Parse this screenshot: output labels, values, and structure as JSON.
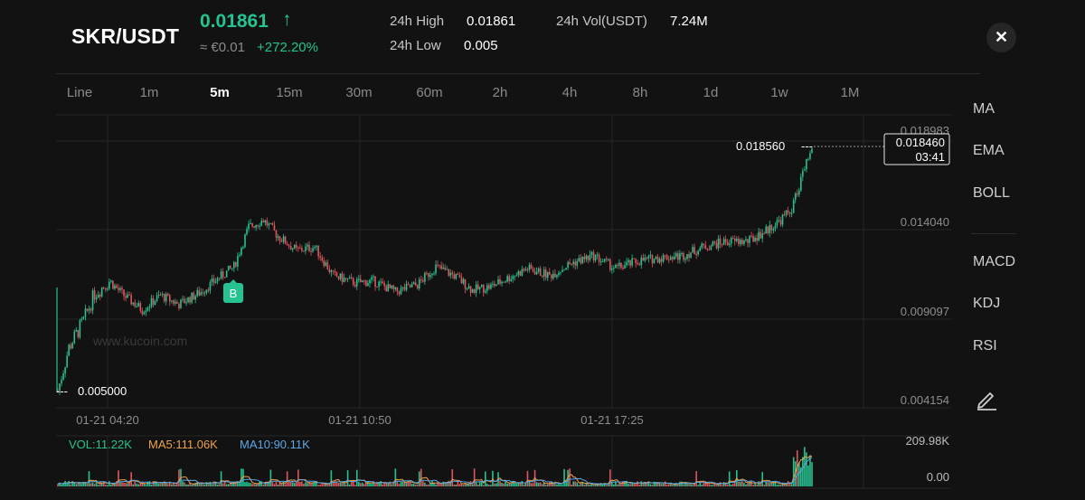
{
  "header": {
    "pair": "SKR/USDT",
    "price": "0.01861",
    "price_arrow": "↑",
    "approx": "≈ €0.01",
    "change": "+272.20%",
    "high_label": "24h High",
    "high_value": "0.01861",
    "low_label": "24h Low",
    "low_value": "0.005",
    "vol_label": "24h Vol(USDT)",
    "vol_value": "7.24M",
    "close": "✕"
  },
  "intervals": [
    "Line",
    "1m",
    "5m",
    "15m",
    "30m",
    "60m",
    "2h",
    "4h",
    "8h",
    "1d",
    "1w",
    "1M"
  ],
  "active_interval": "5m",
  "indicators": {
    "main": [
      "MA",
      "EMA",
      "BOLL"
    ],
    "sub": [
      "MACD",
      "KDJ",
      "RSI"
    ]
  },
  "chart": {
    "watermark": "www.kucoin.com",
    "y_ticks": [
      "0.018983",
      "0.014040",
      "0.009097",
      "0.004154"
    ],
    "y_tick_values": [
      0.018983,
      0.01404,
      0.009097,
      0.004154
    ],
    "x_ticks": [
      "01-21 04:20",
      "01-21 10:50",
      "01-21 17:25"
    ],
    "high_marker": "0.018560",
    "low_marker": "0.005000",
    "current_price": "0.018460",
    "countdown": "03:41",
    "buy_marker": "B",
    "vol_label": "VOL:11.22K",
    "ma5_label": "MA5:111.06K",
    "ma10_label": "MA10:90.11K",
    "vol_max": "209.98K",
    "vol_min": "0.00",
    "colors": {
      "up": "#25c391",
      "down": "#e0555c",
      "ma5": "#f0a24a",
      "ma10": "#5aa8e6"
    }
  }
}
